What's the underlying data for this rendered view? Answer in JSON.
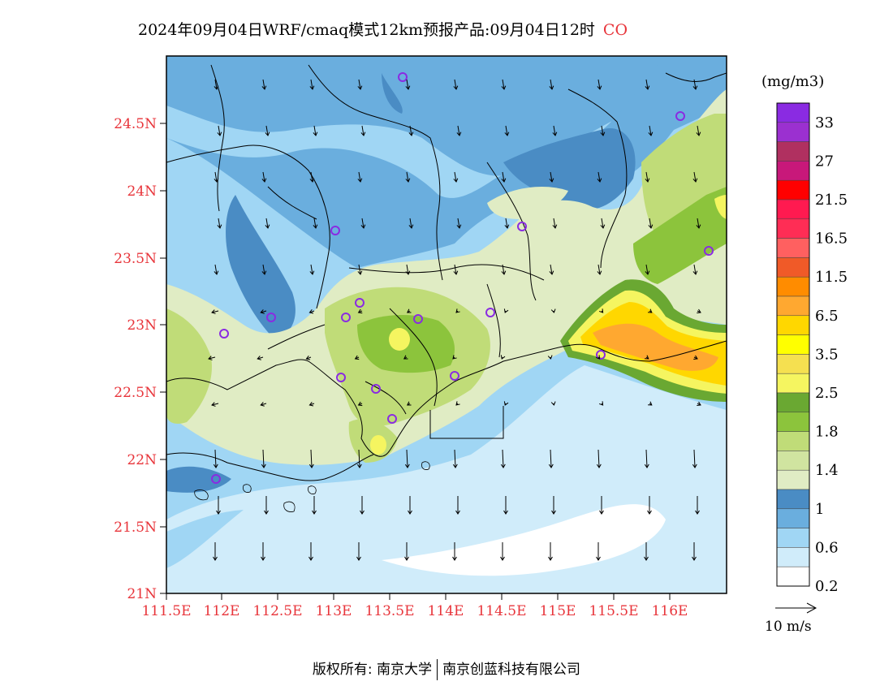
{
  "header": {
    "title": "2024年09月04日WRF/cmaq模式12km预报产品:09月04日12时",
    "species": "CO"
  },
  "axes": {
    "lat_labels": [
      "24.5N",
      "24N",
      "23.5N",
      "23N",
      "22.5N",
      "22N",
      "21.5N",
      "21N"
    ],
    "lon_labels": [
      "111.5E",
      "112E",
      "112.5E",
      "113E",
      "113.5E",
      "114E",
      "114.5E",
      "115E",
      "115.5E",
      "116E"
    ],
    "label_color": "#e8353b"
  },
  "legend": {
    "unit": "(mg/m3)",
    "labels": [
      "33",
      "27",
      "21.5",
      "16.5",
      "11.5",
      "6.5",
      "3.5",
      "2.5",
      "1.8",
      "1.4",
      "1",
      "0.6",
      "0.2"
    ],
    "colors": [
      "#8a2be2",
      "#9b30d0",
      "#b03060",
      "#c8187a",
      "#ff0000",
      "#ff1a50",
      "#ff2d55",
      "#ff6060",
      "#f05a28",
      "#ff8c00",
      "#ffa830",
      "#ffd700",
      "#ffff00",
      "#f5e050",
      "#f5f560",
      "#6aa832",
      "#8cc43c",
      "#c0dc78",
      "#d0e4a0",
      "#e0ecc4",
      "#4a8cc4",
      "#6aaede",
      "#a0d6f4",
      "#d0ecfa",
      "#ffffff"
    ]
  },
  "wind_scale": {
    "label": "10 m/s"
  },
  "footer": {
    "left": "版权所有: 南京大学",
    "right": "南京创蓝科技有限公司"
  }
}
